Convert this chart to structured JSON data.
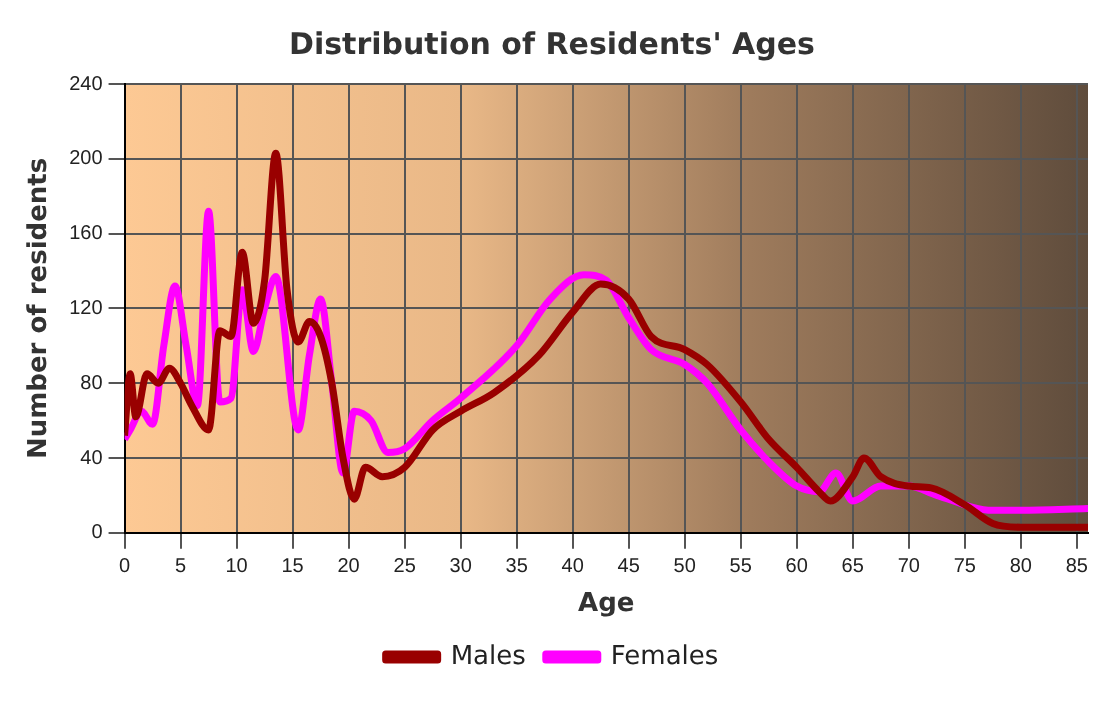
{
  "chart_data": {
    "type": "line",
    "title": "Distribution of Residents' Ages",
    "xlabel": "Age",
    "ylabel": "Number of residents",
    "xlim": [
      0,
      86
    ],
    "xticks": [
      0,
      5,
      10,
      15,
      20,
      25,
      30,
      35,
      40,
      45,
      50,
      55,
      60,
      65,
      70,
      75,
      80,
      85
    ],
    "ylim": [
      0,
      240
    ],
    "yticks": [
      0,
      40,
      80,
      120,
      160,
      200,
      240
    ],
    "grid": true,
    "legend": "bottom",
    "marker": "none",
    "line_style": "solid",
    "series": [
      {
        "name": "Males",
        "color": "#990000",
        "x": [
          0,
          0.5,
          1,
          2,
          3,
          4,
          5,
          6,
          7.5,
          8.5,
          9.5,
          10.5,
          11.5,
          12.5,
          13.5,
          14.5,
          15.5,
          16.5,
          17.5,
          18.5,
          19.5,
          20.5,
          21.5,
          23,
          25,
          27.5,
          30,
          33,
          37,
          40,
          42.5,
          45,
          47,
          50,
          52,
          55,
          57.5,
          60,
          62,
          63,
          65,
          66,
          67.5,
          70,
          72,
          75,
          77.5,
          80,
          86
        ],
        "values": [
          52,
          85,
          62,
          85,
          80,
          88,
          80,
          68,
          55,
          108,
          105,
          150,
          112,
          135,
          203,
          130,
          102,
          113,
          105,
          80,
          40,
          18,
          35,
          30,
          35,
          55,
          65,
          75,
          95,
          118,
          133,
          125,
          105,
          98,
          90,
          70,
          50,
          35,
          22,
          17,
          30,
          40,
          30,
          25,
          24,
          15,
          5,
          3,
          3
        ]
      },
      {
        "name": "Females",
        "color": "#ff00ff",
        "x": [
          0,
          0.5,
          1.5,
          2.5,
          3.5,
          4.5,
          5.5,
          6.5,
          7.5,
          8.5,
          9.5,
          10.5,
          11.5,
          12.5,
          13.5,
          15.5,
          16.5,
          17.5,
          18.5,
          19.5,
          20.5,
          22,
          23.5,
          25,
          27.5,
          30,
          35,
          38,
          41,
          43,
          45,
          47,
          50,
          52,
          55,
          57.5,
          60,
          62,
          63.5,
          65,
          67.5,
          70,
          72.5,
          77.5,
          80,
          86
        ],
        "values": [
          50,
          55,
          65,
          58,
          100,
          132,
          100,
          68,
          172,
          70,
          72,
          130,
          97,
          120,
          137,
          55,
          95,
          125,
          80,
          32,
          65,
          60,
          43,
          45,
          60,
          72,
          100,
          125,
          138,
          135,
          115,
          98,
          90,
          80,
          55,
          38,
          25,
          22,
          32,
          17,
          25,
          25,
          20,
          12,
          12,
          13
        ]
      }
    ]
  }
}
